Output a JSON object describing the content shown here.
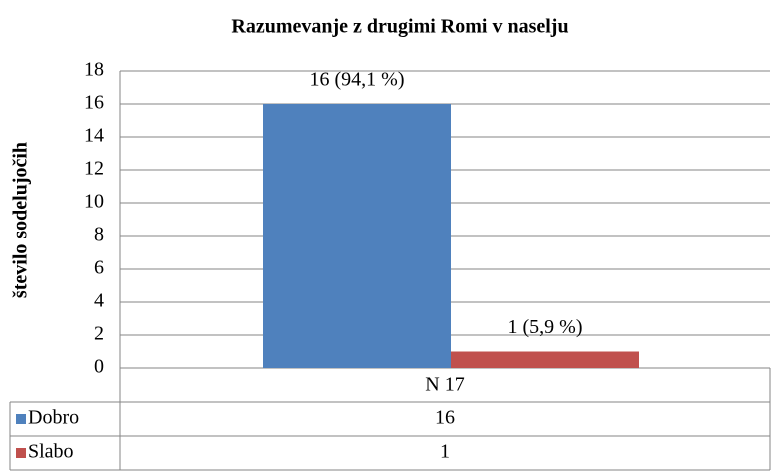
{
  "chart_data": {
    "type": "bar",
    "title": "Razumevanje z drugimi Romi v naselju",
    "y_label": "število sodelujočih",
    "categories": [
      "N 17"
    ],
    "series": [
      {
        "name": "Dobro",
        "color": "#4f81bd",
        "values": [
          16
        ],
        "value_labels": [
          "16 (94,1 %)"
        ]
      },
      {
        "name": "Slabo",
        "color": "#c0504d",
        "values": [
          1
        ],
        "value_labels": [
          "1 (5,9 %)"
        ]
      }
    ],
    "ylim": [
      0,
      18
    ],
    "yticks": [
      0,
      2,
      4,
      6,
      8,
      10,
      12,
      14,
      16,
      18
    ],
    "grid": true,
    "data_table": true
  }
}
